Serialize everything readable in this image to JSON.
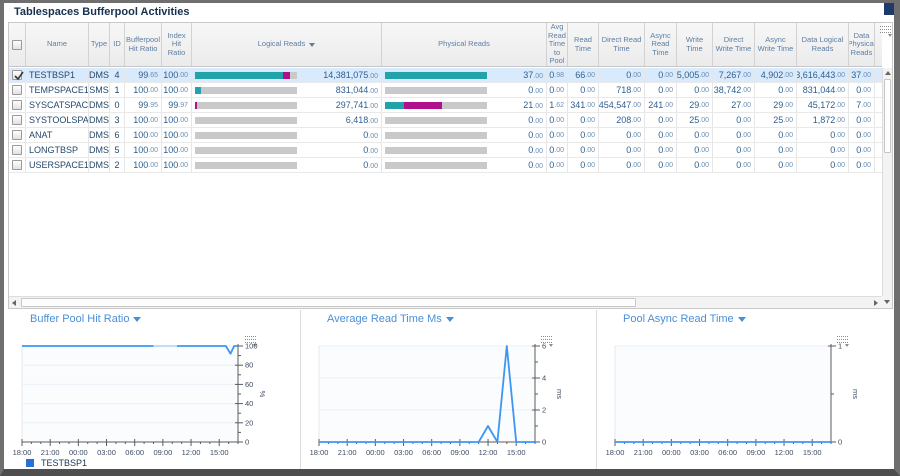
{
  "title": "Tablespaces Bufferpool Activities",
  "colors": {
    "teal": "#21A3A9",
    "magenta": "#B0108C",
    "gray": "#C9C9C9",
    "accent": "#4A90D8",
    "line": "#3D96F2",
    "legend_swatch": "#2970D4",
    "selected_row": "#D9EAFC"
  },
  "table": {
    "headers": [
      {
        "key": "name",
        "label": "Name"
      },
      {
        "key": "type",
        "label": "Type"
      },
      {
        "key": "id",
        "label": "ID"
      },
      {
        "key": "bp_hit_ratio",
        "label": "Bufferpool Hit Ratio"
      },
      {
        "key": "index_hit_ratio",
        "label": "Index Hit Ratio"
      },
      {
        "key": "logical_reads",
        "label": "Logical Reads",
        "sorted": true
      },
      {
        "key": "physical_reads",
        "label": "Physical Reads"
      },
      {
        "key": "avg_read_time_to_pool",
        "label": "Avg Read Time to Pool"
      },
      {
        "key": "read_time",
        "label": "Read Time"
      },
      {
        "key": "direct_read_time",
        "label": "Direct Read Time"
      },
      {
        "key": "async_read_time",
        "label": "Async Read Time"
      },
      {
        "key": "write_time",
        "label": "Write Time"
      },
      {
        "key": "direct_write_time",
        "label": "Direct Write Time"
      },
      {
        "key": "async_write_time",
        "label": "Async Write Time"
      },
      {
        "key": "data_logical_reads",
        "label": "Data Logical Reads"
      },
      {
        "key": "data_physical_reads",
        "label": "Data Physical Reads"
      }
    ],
    "rows": [
      {
        "selected": true,
        "name": "TESTBSP1",
        "type": "DMS",
        "id": "4",
        "bp_hit_ratio": "99.65",
        "index_hit_ratio": "100.00",
        "logical_reads": "14,381,075.00",
        "logical_bar": [
          [
            "teal",
            86
          ],
          [
            "magenta",
            7
          ],
          [
            "gray",
            7
          ]
        ],
        "physical_reads": "37.00",
        "physical_bar": [
          [
            "teal",
            100
          ]
        ],
        "avg_read_time_to_pool": "0.98",
        "read_time": "66.00",
        "direct_read_time": "0.00",
        "async_read_time": "0.00",
        "write_time": "5,005.00",
        "direct_write_time": "7,267.00",
        "async_write_time": "4,902.00",
        "data_logical_reads": "13,616,443.00",
        "data_physical_reads": "37.00"
      },
      {
        "selected": false,
        "name": "TEMPSPACE1",
        "type": "SMS",
        "id": "1",
        "bp_hit_ratio": "100.00",
        "index_hit_ratio": "100.00",
        "logical_reads": "831,044.00",
        "logical_bar": [
          [
            "teal",
            6
          ],
          [
            "gray",
            94
          ]
        ],
        "physical_reads": "0.00",
        "physical_bar": [
          [
            "gray",
            100
          ]
        ],
        "avg_read_time_to_pool": "0.00",
        "read_time": "0.00",
        "direct_read_time": "718.00",
        "async_read_time": "0.00",
        "write_time": "0.00",
        "direct_write_time": "38,742.00",
        "async_write_time": "0.00",
        "data_logical_reads": "831,044.00",
        "data_physical_reads": "0.00"
      },
      {
        "selected": false,
        "name": "SYSCATSPACE",
        "type": "DMS",
        "id": "0",
        "bp_hit_ratio": "99.95",
        "index_hit_ratio": "99.97",
        "logical_reads": "297,741.00",
        "logical_bar": [
          [
            "magenta",
            2
          ],
          [
            "gray",
            98
          ]
        ],
        "physical_reads": "21.00",
        "physical_bar": [
          [
            "teal",
            19
          ],
          [
            "magenta",
            37
          ],
          [
            "gray",
            44
          ]
        ],
        "avg_read_time_to_pool": "1.62",
        "read_time": "341.00",
        "direct_read_time": "454,547.00",
        "async_read_time": "241.00",
        "write_time": "29.00",
        "direct_write_time": "27.00",
        "async_write_time": "29.00",
        "data_logical_reads": "45,172.00",
        "data_physical_reads": "7.00"
      },
      {
        "selected": false,
        "name": "SYSTOOLSPACE",
        "type": "DMS",
        "id": "3",
        "bp_hit_ratio": "100.00",
        "index_hit_ratio": "100.00",
        "logical_reads": "6,418.00",
        "logical_bar": [
          [
            "gray",
            100
          ]
        ],
        "physical_reads": "0.00",
        "physical_bar": [
          [
            "gray",
            100
          ]
        ],
        "avg_read_time_to_pool": "0.00",
        "read_time": "0.00",
        "direct_read_time": "208.00",
        "async_read_time": "0.00",
        "write_time": "25.00",
        "direct_write_time": "0.00",
        "async_write_time": "25.00",
        "data_logical_reads": "1,872.00",
        "data_physical_reads": "0.00"
      },
      {
        "selected": false,
        "name": "ANAT",
        "type": "DMS",
        "id": "6",
        "bp_hit_ratio": "100.00",
        "index_hit_ratio": "100.00",
        "logical_reads": "0.00",
        "logical_bar": [
          [
            "gray",
            100
          ]
        ],
        "physical_reads": "0.00",
        "physical_bar": [
          [
            "gray",
            100
          ]
        ],
        "avg_read_time_to_pool": "0.00",
        "read_time": "0.00",
        "direct_read_time": "0.00",
        "async_read_time": "0.00",
        "write_time": "0.00",
        "direct_write_time": "0.00",
        "async_write_time": "0.00",
        "data_logical_reads": "0.00",
        "data_physical_reads": "0.00"
      },
      {
        "selected": false,
        "name": "LONGTBSP",
        "type": "DMS",
        "id": "5",
        "bp_hit_ratio": "100.00",
        "index_hit_ratio": "100.00",
        "logical_reads": "0.00",
        "logical_bar": [
          [
            "gray",
            100
          ]
        ],
        "physical_reads": "0.00",
        "physical_bar": [
          [
            "gray",
            100
          ]
        ],
        "avg_read_time_to_pool": "0.00",
        "read_time": "0.00",
        "direct_read_time": "0.00",
        "async_read_time": "0.00",
        "write_time": "0.00",
        "direct_write_time": "0.00",
        "async_write_time": "0.00",
        "data_logical_reads": "0.00",
        "data_physical_reads": "0.00"
      },
      {
        "selected": false,
        "name": "USERSPACE1",
        "type": "DMS",
        "id": "2",
        "bp_hit_ratio": "100.00",
        "index_hit_ratio": "100.00",
        "logical_reads": "0.00",
        "logical_bar": [
          [
            "gray",
            100
          ]
        ],
        "physical_reads": "0.00",
        "physical_bar": [
          [
            "gray",
            100
          ]
        ],
        "avg_read_time_to_pool": "0.00",
        "read_time": "0.00",
        "direct_read_time": "0.00",
        "async_read_time": "0.00",
        "write_time": "0.00",
        "direct_write_time": "0.00",
        "async_write_time": "0.00",
        "data_logical_reads": "0.00",
        "data_physical_reads": "0.00"
      }
    ]
  },
  "chart_data": [
    {
      "type": "line",
      "title": "Buffer Pool Hit Ratio",
      "ylabel": "%",
      "ylim": [
        0,
        100
      ],
      "yticks": [
        0,
        20,
        40,
        60,
        80,
        100
      ],
      "y_minor_step": 10,
      "xticks": [
        "18:00",
        "21:00",
        "00:00",
        "03:00",
        "06:00",
        "09:00",
        "12:00",
        "15:00"
      ],
      "x_range_hours": 23,
      "x_major_every": 3,
      "grid": true,
      "legend_position": "bottom-left",
      "series": [
        {
          "name": "TESTBSP1",
          "segments": [
            {
              "opacity": 1,
              "points": [
                [
                  0,
                  100
                ],
                [
                  14,
                  100
                ]
              ]
            },
            {
              "opacity": 0.3,
              "points": [
                [
                  14,
                  100
                ],
                [
                  16.5,
                  100
                ]
              ]
            },
            {
              "opacity": 1,
              "points": [
                [
                  16.5,
                  100
                ],
                [
                  21.7,
                  100
                ],
                [
                  22.2,
                  92
                ],
                [
                  22.6,
                  100
                ],
                [
                  23,
                  100
                ]
              ]
            }
          ]
        }
      ],
      "legend": [
        {
          "label": "TESTBSP1"
        }
      ]
    },
    {
      "type": "line",
      "title": "Average Read Time Ms",
      "ylabel": "ms",
      "ylim": [
        0,
        6
      ],
      "yticks": [
        0,
        2,
        4,
        6
      ],
      "y_minor_step": 1,
      "xticks": [
        "18:00",
        "21:00",
        "00:00",
        "03:00",
        "06:00",
        "09:00",
        "12:00",
        "15:00"
      ],
      "x_range_hours": 23,
      "x_major_every": 3,
      "grid": true,
      "series": [
        {
          "name": "TESTBSP1",
          "segments": [
            {
              "opacity": 1,
              "points": [
                [
                  0,
                  0
                ],
                [
                  17,
                  0
                ],
                [
                  18,
                  1
                ],
                [
                  19,
                  0
                ],
                [
                  20,
                  6
                ],
                [
                  21,
                  0
                ],
                [
                  23,
                  0
                ]
              ]
            }
          ]
        }
      ],
      "legend": []
    },
    {
      "type": "line",
      "title": "Pool Async Read Time",
      "ylabel": "ms",
      "ylim": [
        0,
        1
      ],
      "yticks": [
        0,
        1
      ],
      "y_minor_step": 0.5,
      "xticks": [
        "18:00",
        "21:00",
        "00:00",
        "03:00",
        "06:00",
        "09:00",
        "12:00",
        "15:00"
      ],
      "x_range_hours": 23,
      "x_major_every": 3,
      "grid": true,
      "series": [
        {
          "name": "TESTBSP1",
          "segments": [
            {
              "opacity": 1,
              "points": [
                [
                  0,
                  0
                ],
                [
                  23,
                  0
                ]
              ]
            }
          ]
        }
      ],
      "legend": []
    }
  ]
}
